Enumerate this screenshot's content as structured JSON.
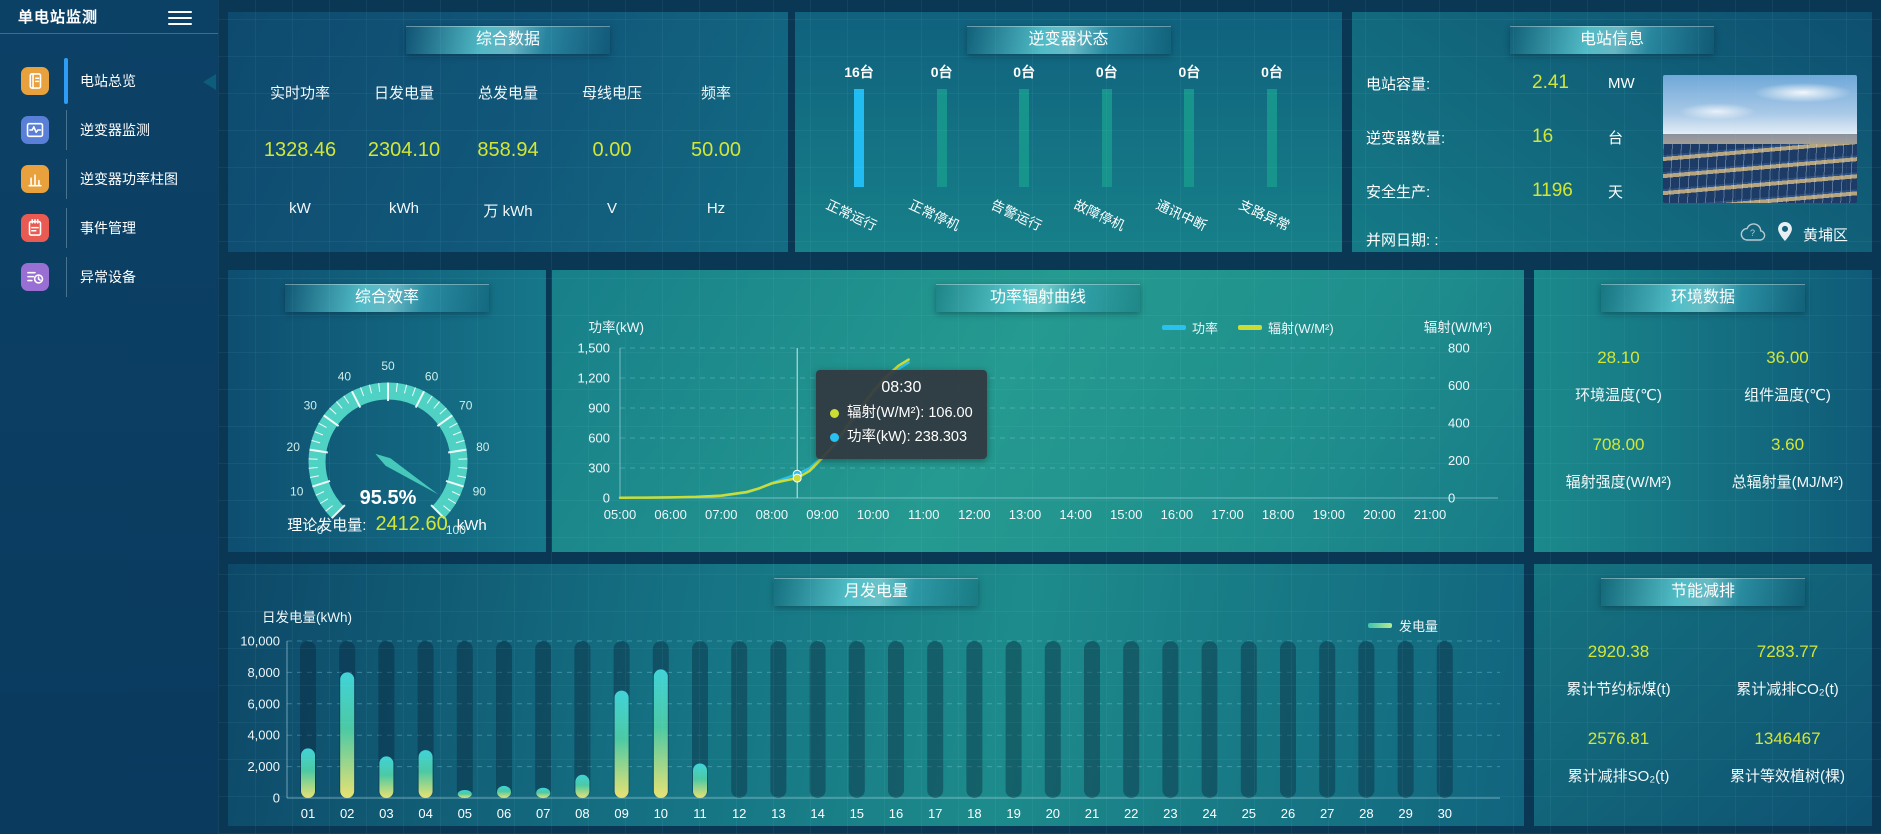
{
  "sidebar": {
    "title": "单电站监测",
    "items": [
      {
        "label": "电站总览",
        "icon": "book",
        "icon_color": "#e8a13c",
        "active": true
      },
      {
        "label": "逆变器监测",
        "icon": "pulse",
        "icon_color": "#5a7fd6",
        "active": false
      },
      {
        "label": "逆变器功率柱图",
        "icon": "bars",
        "icon_color": "#e8a13c",
        "active": false
      },
      {
        "label": "事件管理",
        "icon": "notebook",
        "icon_color": "#e95b52",
        "active": false
      },
      {
        "label": "异常设备",
        "icon": "devlist",
        "icon_color": "#9a6fd4",
        "active": false
      }
    ]
  },
  "panels": {
    "summary": {
      "title": "综合数据",
      "metrics": [
        {
          "label": "实时功率",
          "value": "1328.46",
          "unit": "kW"
        },
        {
          "label": "日发电量",
          "value": "2304.10",
          "unit": "kWh"
        },
        {
          "label": "总发电量",
          "value": "858.94",
          "unit": "万 kWh"
        },
        {
          "label": "母线电压",
          "value": "0.00",
          "unit": "V"
        },
        {
          "label": "频率",
          "value": "50.00",
          "unit": "Hz"
        }
      ]
    },
    "inverter_status": {
      "title": "逆变器状态",
      "bar_color_active": "#21bdf2",
      "bar_color_idle": "#17948b",
      "items": [
        {
          "count": "16台",
          "label": "正常运行",
          "highlight": true
        },
        {
          "count": "0台",
          "label": "正常停机",
          "highlight": false
        },
        {
          "count": "0台",
          "label": "告警运行",
          "highlight": false
        },
        {
          "count": "0台",
          "label": "故障停机",
          "highlight": false
        },
        {
          "count": "0台",
          "label": "通讯中断",
          "highlight": false
        },
        {
          "count": "0台",
          "label": "支路异常",
          "highlight": false
        }
      ]
    },
    "station_info": {
      "title": "电站信息",
      "rows": [
        {
          "label": "电站容量:",
          "value": "2.41",
          "unit": "MW"
        },
        {
          "label": "逆变器数量:",
          "value": "16",
          "unit": "台"
        },
        {
          "label": "安全生产:",
          "value": "1196",
          "unit": "天"
        },
        {
          "label": "并网日期: :",
          "value": "",
          "unit": ""
        }
      ],
      "location": "黄埔区"
    },
    "efficiency": {
      "title": "综合效率",
      "footer_label": "理论发电量:",
      "footer_value": "2412.60",
      "footer_unit": "kWh"
    },
    "power_radiation": {
      "title": "功率辐射曲线"
    },
    "environment": {
      "title": "环境数据",
      "metrics": [
        {
          "value": "28.10",
          "label": "环境温度(℃)"
        },
        {
          "value": "36.00",
          "label": "组件温度(℃)"
        },
        {
          "value": "708.00",
          "label": "辐射强度(W/M²)"
        },
        {
          "value": "3.60",
          "label": "总辐射量(MJ/M²)"
        }
      ]
    },
    "monthly": {
      "title": "月发电量",
      "legend": "发电量"
    },
    "savings": {
      "title": "节能减排",
      "metrics": [
        {
          "value": "2920.38",
          "label": "累计节约标煤(t)"
        },
        {
          "value": "7283.77",
          "label": "累计减排CO₂(t)"
        },
        {
          "value": "2576.81",
          "label": "累计减排SO₂(t)"
        },
        {
          "value": "1346467",
          "label": "累计等效植树(棵)"
        }
      ]
    }
  },
  "chart_data": [
    {
      "id": "efficiency_gauge",
      "type": "gauge",
      "min": 0,
      "max": 100,
      "value": 95.5,
      "value_label": "95.5%",
      "ticks": [
        0,
        10,
        20,
        30,
        40,
        50,
        60,
        70,
        80,
        90,
        100
      ],
      "arc_color": "#4fd2c3",
      "needle_color": "#45c8ba"
    },
    {
      "id": "power_radiation",
      "type": "line",
      "x_labels": [
        "05:00",
        "06:00",
        "07:00",
        "08:00",
        "09:00",
        "10:00",
        "11:00",
        "12:00",
        "13:00",
        "14:00",
        "15:00",
        "16:00",
        "17:00",
        "18:00",
        "19:00",
        "20:00",
        "21:00"
      ],
      "x_range_hours": [
        5,
        21
      ],
      "left_axis": {
        "title": "功率(kW)",
        "tick_labels": [
          "0",
          "300",
          "600",
          "900",
          "1,200",
          "1,500"
        ],
        "max": 1500
      },
      "right_axis": {
        "title": "辐射(W/M²)",
        "tick_labels": [
          "0",
          "200",
          "400",
          "600",
          "800"
        ],
        "max": 800
      },
      "legend": [
        {
          "name": "功率",
          "color": "#29c2f0"
        },
        {
          "name": "辐射(W/M²)",
          "color": "#cddc35"
        }
      ],
      "series": [
        {
          "name": "功率",
          "axis": "left",
          "color": "#29c2f0",
          "points": [
            [
              5,
              2
            ],
            [
              5.5,
              3
            ],
            [
              6,
              5
            ],
            [
              6.5,
              10
            ],
            [
              7,
              22
            ],
            [
              7.5,
              55
            ],
            [
              7.75,
              95
            ],
            [
              8,
              150
            ],
            [
              8.25,
              195
            ],
            [
              8.5,
              238.3
            ],
            [
              8.75,
              300
            ],
            [
              9,
              410
            ],
            [
              9.25,
              530
            ],
            [
              9.5,
              700
            ],
            [
              9.75,
              880
            ],
            [
              10,
              1050
            ],
            [
              10.25,
              1180
            ],
            [
              10.5,
              1290
            ],
            [
              10.7,
              1355
            ]
          ]
        },
        {
          "name": "辐射",
          "axis": "right",
          "color": "#cddc35",
          "points": [
            [
              5,
              1
            ],
            [
              5.5,
              2
            ],
            [
              6,
              3
            ],
            [
              6.5,
              6
            ],
            [
              7,
              13
            ],
            [
              7.5,
              32
            ],
            [
              7.75,
              52
            ],
            [
              8,
              78
            ],
            [
              8.25,
              93
            ],
            [
              8.5,
              106
            ],
            [
              8.75,
              145
            ],
            [
              9,
              215
            ],
            [
              9.25,
              290
            ],
            [
              9.5,
              390
            ],
            [
              9.75,
              480
            ],
            [
              10,
              570
            ],
            [
              10.25,
              645
            ],
            [
              10.5,
              705
            ],
            [
              10.7,
              738
            ]
          ]
        }
      ],
      "tooltip": {
        "time": "08:30",
        "x_hour": 8.5,
        "power": 238.303,
        "radiation": 106,
        "rows": [
          {
            "color": "#cddc35",
            "text": "辐射(W/M²): 106.00"
          },
          {
            "color": "#29c2f0",
            "text": "功率(kW): 238.303"
          }
        ]
      }
    },
    {
      "id": "monthly_energy",
      "type": "bar",
      "axis_title": "日发电量(kWh)",
      "legend": "发电量",
      "ymax": 10000,
      "ytick_labels": [
        "0",
        "2,000",
        "4,000",
        "6,000",
        "8,000",
        "10,000"
      ],
      "categories": [
        "01",
        "02",
        "03",
        "04",
        "05",
        "06",
        "07",
        "08",
        "09",
        "10",
        "11",
        "12",
        "13",
        "14",
        "15",
        "16",
        "17",
        "18",
        "19",
        "20",
        "21",
        "22",
        "23",
        "24",
        "25",
        "26",
        "27",
        "28",
        "29",
        "30"
      ],
      "values": [
        3160,
        8000,
        2650,
        3050,
        510,
        770,
        650,
        1480,
        6840,
        8190,
        2200,
        0,
        0,
        0,
        0,
        0,
        0,
        0,
        0,
        0,
        0,
        0,
        0,
        0,
        0,
        0,
        0,
        0,
        0,
        0
      ],
      "bar_gradient": [
        "#41d3d8",
        "#4cc9a4",
        "#e9e272"
      ]
    }
  ]
}
